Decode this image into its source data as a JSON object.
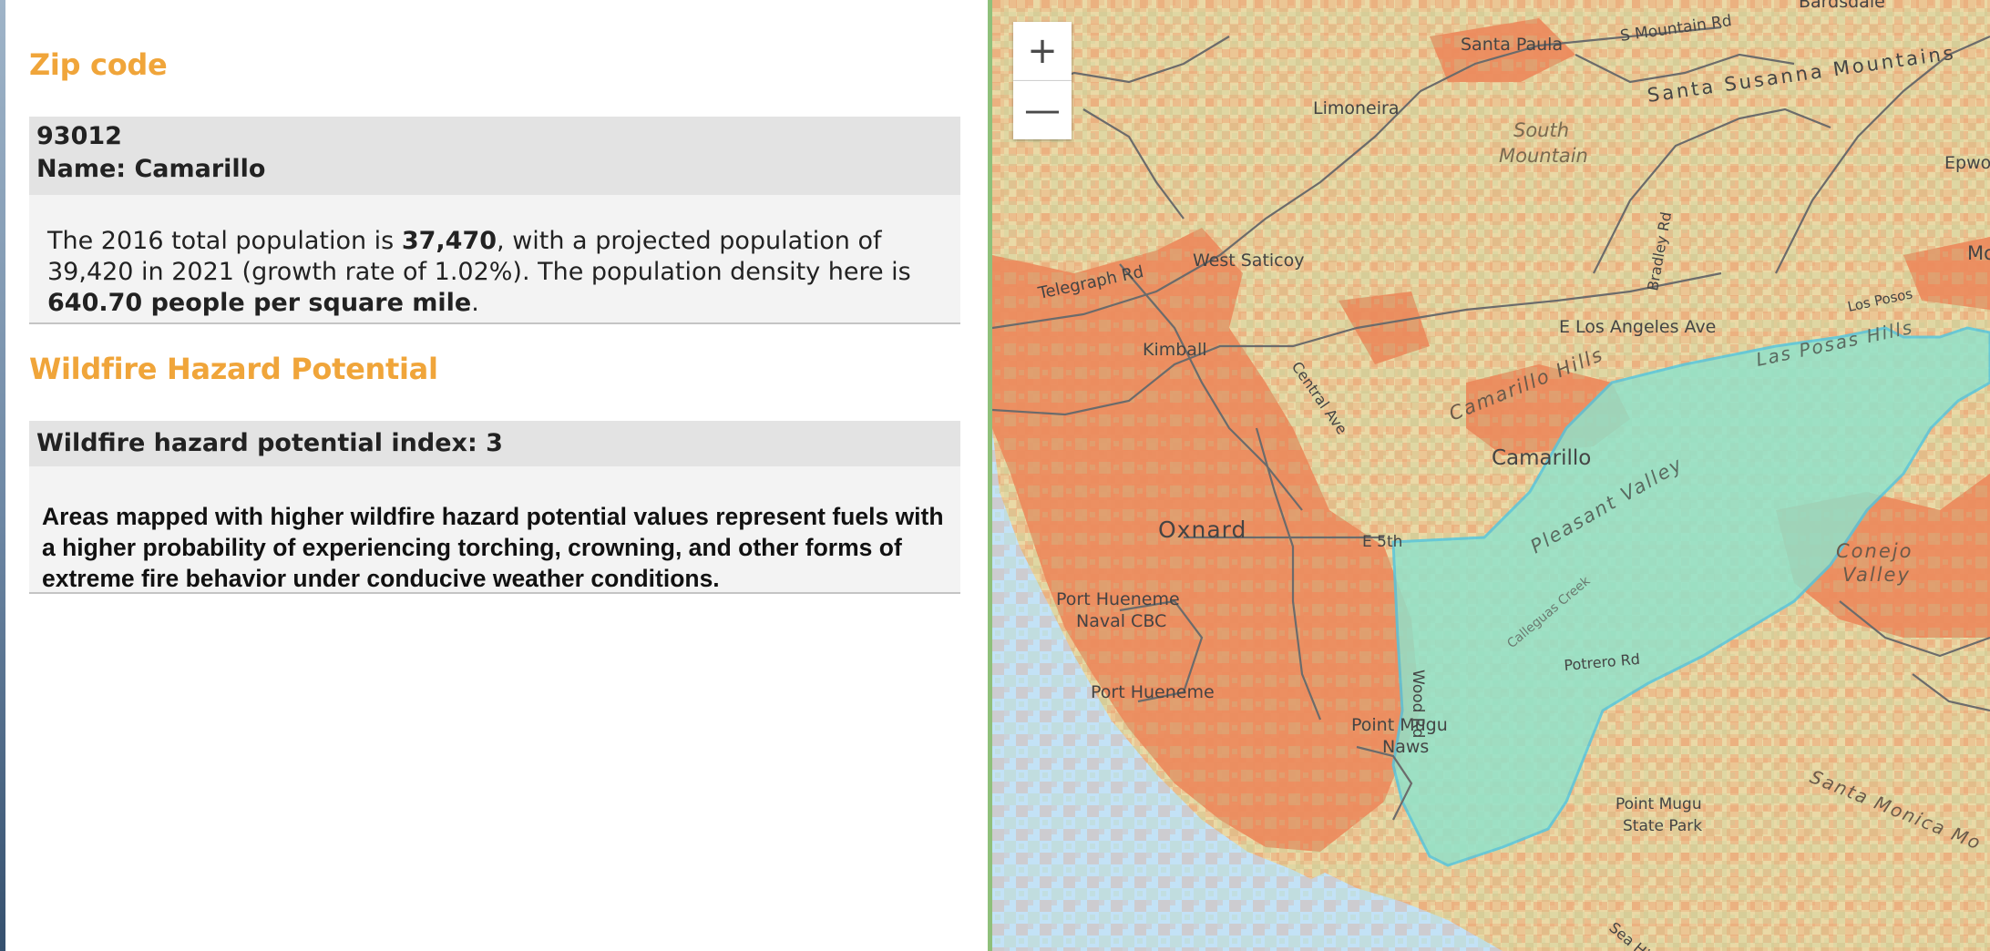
{
  "zip_section": {
    "title": "Zip code",
    "zip": "93012",
    "name_line": "Name: Camarillo",
    "pop_prefix": "The 2016 total population is ",
    "population": "37,470",
    "pop_mid": ", with a projected population of 39,420 in 2021 (growth rate of 1.02%). The population density here is ",
    "density": "640.70 people per square mile",
    "pop_suffix": "."
  },
  "wildfire_section": {
    "title": "Wildfire Hazard Potential",
    "index_line": "Wildfire hazard potential index: 3",
    "description": "Areas mapped with higher wildfire hazard potential values represent fuels with a higher probability of experiencing torching, crowning, and other forms of extreme fire behavior under conducive weather conditions."
  },
  "map": {
    "zoom_in_label": "+",
    "zoom_out_label": "—",
    "colors": {
      "ocean": "#c3e2f6",
      "land": "#ead9a6",
      "hazard_high": "#ec8a5c",
      "hazard_low": "#bccf9a",
      "zip_highlight": "#8fe3cc",
      "zip_outline": "#4fc7e2",
      "roads": "#6b6b6b",
      "accent": "#f0a53a"
    },
    "labels": {
      "bardsdale": "Bardsdale",
      "santa_paula": "Santa Paula",
      "mountain_rd": "S Mountain Rd",
      "santa_susana": "Santa Susanna Mountains",
      "limoneira": "Limoneira",
      "south": "South",
      "mountain": "Mountain",
      "epworth": "Epwo",
      "moor": "Moo",
      "bradley": "Bradley Rd",
      "telegraph": "Telegraph Rd",
      "west_saticoy": "West Saticoy",
      "los_posos": "Los Posos",
      "e_los_angeles": "E Los Angeles Ave",
      "las_posas_hills": "Las Posas Hills",
      "kimball": "Kimball",
      "central": "Central Ave",
      "camarillo_hills": "Camarillo Hills",
      "camarillo": "Camarillo",
      "pleasant_valley": "Pleasant Valley",
      "oxnard": "Oxnard",
      "e_5th": "E 5th",
      "conejo": "Conejo",
      "valley": "Valley",
      "port_hueneme_cbc": "Port Hueneme",
      "naval_cbc": "Naval CBC",
      "calleguas": "Calleguas Creek",
      "wood": "Wood Rd",
      "potrero": "Potrero Rd",
      "port_hueneme": "Port Hueneme",
      "point_mugu": "Point Mugu",
      "nawc": "Naws",
      "point_mugu_sp": "Point Mugu",
      "state_park": "State Park",
      "santa_monica": "Santa Monica Mo",
      "bottom_label": "Sea Hi"
    }
  }
}
